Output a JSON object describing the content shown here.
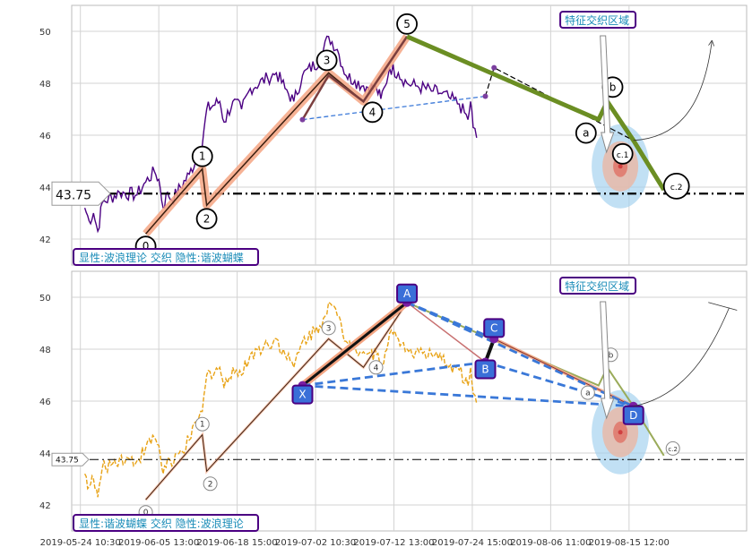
{
  "colors": {
    "price": "#4b0082",
    "price_bottom": "#e8a317",
    "wave_fill": "#f4a582",
    "wave_line": "#3b1f10",
    "green": "#6b8e23",
    "blue_dash": "#3a78d8",
    "label_box_border": "#4b0082",
    "label_text": "#1a8cb8",
    "point_fill": "#3a6fd8",
    "ellipse_outer": "#9fd0ee",
    "ellipse_mid": "#e8b8a8",
    "ellipse_inner": "#d04040"
  },
  "chart_data": [
    {
      "type": "line",
      "panel": "top",
      "ylim": [
        41,
        51
      ],
      "yticks": [
        42,
        44,
        46,
        48,
        50
      ],
      "grid": true,
      "annotation_tl": "显性:波浪理论 交织 隐性:谐波蝴蝶",
      "annotation_tr": "特征交织区域",
      "level_label": "43.75",
      "level_value": 43.75,
      "wave_points": [
        {
          "label": "0",
          "x": 1.0,
          "y": 42.2
        },
        {
          "label": "1",
          "x": 7.5,
          "y": 44.7
        },
        {
          "label": "2",
          "x": 8.0,
          "y": 43.3
        },
        {
          "label": "3",
          "x": 22.0,
          "y": 48.4
        },
        {
          "label": "4",
          "x": 26.0,
          "y": 47.3
        },
        {
          "label": "5",
          "x": 31.0,
          "y": 49.8
        },
        {
          "label": "a",
          "x": 53.0,
          "y": 46.6
        },
        {
          "label": "b",
          "x": 54.0,
          "y": 47.3
        },
        {
          "label": "c.1",
          "x": 57.0,
          "y": 45.8
        },
        {
          "label": "c.2",
          "x": 60.5,
          "y": 43.9
        }
      ]
    },
    {
      "type": "line",
      "panel": "bottom",
      "ylim": [
        41,
        51
      ],
      "yticks": [
        42,
        44,
        46,
        48,
        50
      ],
      "grid": true,
      "annotation_tl": "显性:谐波蝴蝶 交织 隐性:波浪理论",
      "annotation_tr": "特征交织区域",
      "level_label": "43.75",
      "level_value": 43.75,
      "harmonic_points": [
        {
          "label": "X",
          "x": 19.0,
          "y": 46.6
        },
        {
          "label": "A",
          "x": 31.0,
          "y": 49.8
        },
        {
          "label": "B",
          "x": 40.0,
          "y": 47.5
        },
        {
          "label": "C",
          "x": 41.0,
          "y": 48.4
        },
        {
          "label": "D",
          "x": 57.0,
          "y": 45.8
        }
      ],
      "wave_points": [
        {
          "label": "0",
          "x": 1.0,
          "y": 42.2
        },
        {
          "label": "1",
          "x": 7.5,
          "y": 44.7
        },
        {
          "label": "2",
          "x": 8.0,
          "y": 43.3
        },
        {
          "label": "3",
          "x": 22.0,
          "y": 48.4
        },
        {
          "label": "4",
          "x": 26.0,
          "y": 47.3
        },
        {
          "label": "a",
          "x": 53.0,
          "y": 46.6
        },
        {
          "label": "b",
          "x": 54.0,
          "y": 47.3
        },
        {
          "label": "c.2",
          "x": 60.5,
          "y": 43.9
        }
      ]
    }
  ],
  "x_axis": {
    "xlim": [
      -7.5,
      70
    ],
    "ticks": [
      {
        "x": -6.5,
        "label": "2019-05-24 10:30"
      },
      {
        "x": 2.5,
        "label": "2019-06-05 13:00"
      },
      {
        "x": 11.5,
        "label": "2019-06-18 15:00"
      },
      {
        "x": 20.5,
        "label": "2019-07-02 10:30"
      },
      {
        "x": 29.5,
        "label": "2019-07-12 13:00"
      },
      {
        "x": 38.5,
        "label": "2019-07-24 15:00"
      },
      {
        "x": 47.5,
        "label": "2019-08-06 11:00"
      },
      {
        "x": 56.5,
        "label": "2019-08-15 12:00"
      }
    ]
  }
}
